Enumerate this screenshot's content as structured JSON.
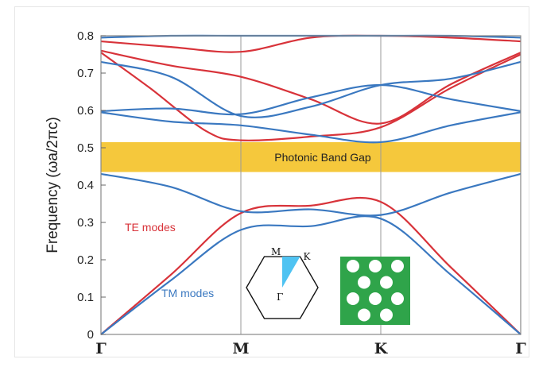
{
  "chart_data": {
    "type": "line",
    "title": "",
    "xlabel": "",
    "ylabel": "Frequency  (ωa/2πc)",
    "x_ticks": [
      "Γ",
      "M",
      "K",
      "Γ"
    ],
    "ylim": [
      0,
      0.8
    ],
    "y_ticks": [
      "0",
      "0.1",
      "0.2",
      "0.3",
      "0.4",
      "0.5",
      "0.6",
      "0.7",
      "0.8"
    ],
    "band_gap": {
      "label": "Photonic Band Gap",
      "y_range": [
        0.435,
        0.515
      ],
      "color": "#f5c83c"
    },
    "series": [
      {
        "name": "TE modes",
        "color": "#d8333a",
        "bands": [
          [
            [
              0,
              0
            ],
            [
              0.5,
              0.16
            ],
            [
              1,
              0.325
            ],
            [
              1.5,
              0.345
            ],
            [
              2,
              0.355
            ],
            [
              2.5,
              0.18
            ],
            [
              3,
              0
            ]
          ],
          [
            [
              0,
              0.755
            ],
            [
              0.35,
              0.66
            ],
            [
              0.75,
              0.545
            ],
            [
              1,
              0.52
            ],
            [
              1.5,
              0.53
            ],
            [
              2,
              0.555
            ],
            [
              2.5,
              0.66
            ],
            [
              3,
              0.75
            ]
          ],
          [
            [
              0,
              0.76
            ],
            [
              0.5,
              0.72
            ],
            [
              1,
              0.69
            ],
            [
              1.5,
              0.63
            ],
            [
              2,
              0.565
            ],
            [
              2.5,
              0.67
            ],
            [
              3,
              0.755
            ]
          ],
          [
            [
              0,
              0.785
            ],
            [
              0.5,
              0.77
            ],
            [
              1,
              0.757
            ],
            [
              1.5,
              0.795
            ],
            [
              2,
              0.8
            ],
            [
              2.5,
              0.795
            ],
            [
              3,
              0.785
            ]
          ]
        ]
      },
      {
        "name": "TM modes",
        "color": "#3a78c0",
        "bands": [
          [
            [
              0,
              0
            ],
            [
              0.5,
              0.145
            ],
            [
              1,
              0.28
            ],
            [
              1.5,
              0.29
            ],
            [
              2,
              0.31
            ],
            [
              2.5,
              0.16
            ],
            [
              3,
              0
            ]
          ],
          [
            [
              0,
              0.43
            ],
            [
              0.5,
              0.395
            ],
            [
              1,
              0.33
            ],
            [
              1.5,
              0.335
            ],
            [
              2,
              0.32
            ],
            [
              2.5,
              0.38
            ],
            [
              3,
              0.43
            ]
          ],
          [
            [
              0,
              0.595
            ],
            [
              0.5,
              0.57
            ],
            [
              1,
              0.56
            ],
            [
              1.5,
              0.535
            ],
            [
              2,
              0.515
            ],
            [
              2.5,
              0.56
            ],
            [
              3,
              0.595
            ]
          ],
          [
            [
              0,
              0.598
            ],
            [
              0.5,
              0.605
            ],
            [
              1,
              0.59
            ],
            [
              1.5,
              0.635
            ],
            [
              2,
              0.668
            ],
            [
              2.5,
              0.63
            ],
            [
              3,
              0.598
            ]
          ],
          [
            [
              0,
              0.73
            ],
            [
              0.5,
              0.69
            ],
            [
              1,
              0.585
            ],
            [
              1.5,
              0.61
            ],
            [
              2,
              0.668
            ],
            [
              2.5,
              0.685
            ],
            [
              3,
              0.73
            ]
          ],
          [
            [
              0,
              0.795
            ],
            [
              0.5,
              0.8
            ],
            [
              1,
              0.8
            ],
            [
              1.5,
              0.8
            ],
            [
              2,
              0.8
            ],
            [
              2.5,
              0.8
            ],
            [
              3,
              0.795
            ]
          ]
        ]
      }
    ],
    "annotations": [
      {
        "text": "TE modes",
        "color": "#d8333a"
      },
      {
        "text": "TM modes",
        "color": "#3a78c0"
      }
    ],
    "inset_brillouin_zone": {
      "labels": [
        "M",
        "K",
        "Γ"
      ],
      "wedge_color": "#4fc3f2"
    },
    "inset_lattice": {
      "background": "#2fa44a",
      "hole_color": "#ffffff",
      "rows": 4,
      "cols": 3
    }
  }
}
